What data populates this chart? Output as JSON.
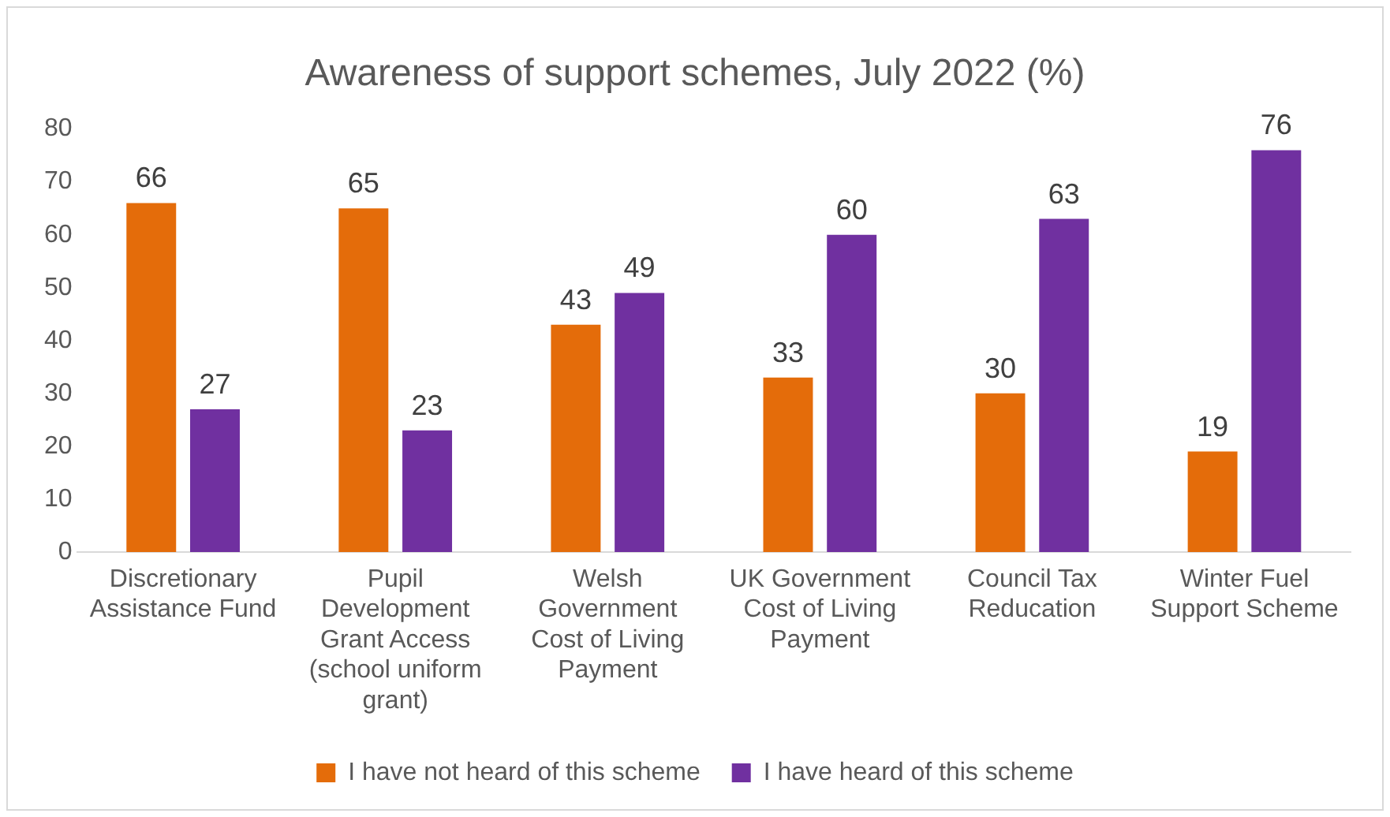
{
  "chart_data": {
    "type": "bar",
    "title": "Awareness of support schemes, July 2022 (%)",
    "categories": [
      "Discretionary Assistance Fund",
      "Pupil Development Grant Access (school uniform grant)",
      "Welsh Government Cost of Living Payment",
      "UK Government Cost of Living Payment",
      "Council Tax Reducation",
      "Winter Fuel Support Scheme"
    ],
    "series": [
      {
        "name": "I have not heard of this scheme",
        "color": "#e46c0a",
        "values": [
          66,
          65,
          43,
          33,
          30,
          19
        ]
      },
      {
        "name": "I have heard of this scheme",
        "color": "#7030a0",
        "values": [
          27,
          23,
          49,
          60,
          63,
          76
        ]
      }
    ],
    "ylim": [
      0,
      80
    ],
    "yticks": [
      0,
      10,
      20,
      30,
      40,
      50,
      60,
      70,
      80
    ],
    "grid": false,
    "legend": "bottom",
    "data_labels": true
  }
}
